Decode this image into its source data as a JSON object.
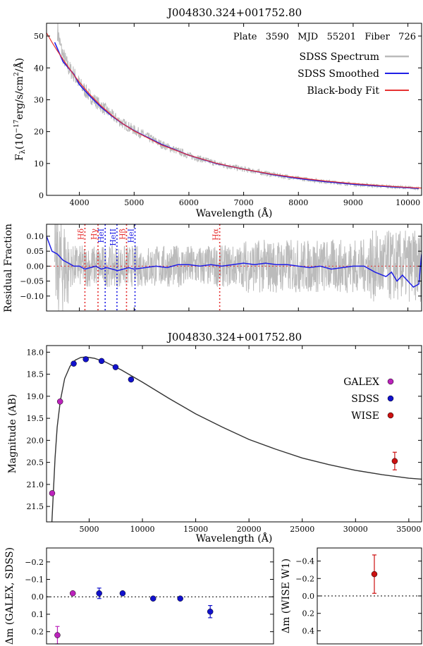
{
  "chart_data": [
    {
      "panel": "spectrum",
      "type": "line",
      "title": "J004830.324+001752.80",
      "annotation": "Plate   3590   MJD   55201   Fiber   726",
      "xlabel": "Wavelength (Å)",
      "ylabel": "F",
      "ylabel_sub": "λ",
      "ylabel_unit": "(10",
      "ylabel_exp": "−17",
      "ylabel_rest": "erg/s/cm",
      "ylabel_exp2": "2",
      "ylabel_end": "/Å)",
      "xlim": [
        3400,
        10250
      ],
      "ylim": [
        0,
        54
      ],
      "xticks": [
        4000,
        5000,
        6000,
        7000,
        8000,
        9000,
        10000
      ],
      "yticks": [
        0,
        10,
        20,
        30,
        40,
        50
      ],
      "legend_placement": "top-right",
      "series": [
        {
          "name": "SDSS Spectrum",
          "color": "#bbbbbb",
          "x": [
            3600,
            3650,
            3700,
            3800,
            3900,
            4000,
            4200,
            4400,
            4600,
            4800,
            5000,
            5500,
            6000,
            6500,
            7000,
            7500,
            8000,
            8500,
            9000,
            9500,
            10000,
            10200
          ],
          "y": [
            52,
            47,
            44,
            40,
            38,
            35,
            31,
            28,
            25,
            22.5,
            20.5,
            16,
            12.5,
            10,
            8.2,
            6.6,
            5.3,
            4.3,
            3.5,
            2.9,
            2.4,
            2.2
          ]
        },
        {
          "name": "SDSS Smoothed",
          "color": "#1f1fe6",
          "x": [
            3550,
            3600,
            3650,
            3700,
            3800,
            3900,
            4000,
            4200,
            4400,
            4600,
            4800,
            5000,
            5500,
            6000,
            6500,
            7000,
            7500,
            8000,
            8500,
            9000,
            9500,
            10000,
            10200
          ],
          "y": [
            48,
            46,
            44,
            42,
            40,
            38,
            34.8,
            31,
            27.6,
            24.8,
            22.4,
            20.3,
            16,
            12.6,
            10,
            8.2,
            6.6,
            5.3,
            4.3,
            3.5,
            2.9,
            2.4,
            2.2
          ]
        },
        {
          "name": "Black-body Fit",
          "color": "#e63232",
          "x": [
            3400,
            3500,
            3600,
            3700,
            3800,
            3900,
            4000,
            4200,
            4400,
            4600,
            4800,
            5000,
            5500,
            6000,
            6500,
            7000,
            7500,
            8000,
            8500,
            9000,
            9500,
            10000,
            10250
          ],
          "y": [
            51,
            48,
            45.3,
            42.7,
            40.2,
            37.8,
            35.5,
            31.5,
            28,
            25,
            22.4,
            20.2,
            15.8,
            12.6,
            10.1,
            8.2,
            6.7,
            5.5,
            4.5,
            3.7,
            3.05,
            2.5,
            2.3
          ]
        }
      ],
      "legend": [
        "SDSS Spectrum",
        "SDSS Smoothed",
        "Black-body Fit"
      ]
    },
    {
      "panel": "residual",
      "type": "line",
      "ylabel": "Residual Fraction",
      "xlim": [
        3400,
        10250
      ],
      "ylim": [
        -0.15,
        0.14
      ],
      "yticks": [
        -0.1,
        -0.05,
        0.0,
        0.05,
        0.1
      ],
      "ytick_labels": [
        "−0.10",
        "−0.05",
        "0.00",
        "0.05",
        "0.10"
      ],
      "smoothed_color": "#1f1fe6",
      "noise_color": "#bbbbbb",
      "zero_line_color": "#e63232",
      "smoothed": {
        "x": [
          3400,
          3500,
          3600,
          3700,
          3800,
          3900,
          4000,
          4100,
          4200,
          4300,
          4400,
          4500,
          4600,
          4700,
          4800,
          4900,
          5000,
          5200,
          5400,
          5600,
          5800,
          6000,
          6200,
          6400,
          6600,
          6800,
          7000,
          7200,
          7400,
          7600,
          7800,
          8000,
          8200,
          8400,
          8600,
          8800,
          9000,
          9200,
          9400,
          9600,
          9700,
          9800,
          9900,
          10000,
          10100,
          10200,
          10250
        ],
        "y": [
          0.1,
          0.05,
          0.04,
          0.02,
          0.01,
          0.0,
          0.0,
          -0.01,
          -0.005,
          0.0,
          -0.01,
          -0.005,
          -0.01,
          -0.015,
          -0.01,
          -0.005,
          -0.01,
          -0.005,
          0.0,
          -0.005,
          0.005,
          0.005,
          0.0,
          0.005,
          0.0,
          0.005,
          0.01,
          0.005,
          0.01,
          0.005,
          0.005,
          0.0,
          -0.005,
          0.0,
          -0.01,
          -0.005,
          0.0,
          0.0,
          -0.02,
          -0.035,
          -0.02,
          -0.05,
          -0.03,
          -0.05,
          -0.07,
          -0.06,
          0.04
        ]
      },
      "lines": [
        {
          "label": "Hδ",
          "x": 4101,
          "color": "#e63232"
        },
        {
          "label": "Hγ",
          "x": 4340,
          "color": "#e63232"
        },
        {
          "label": "HeI",
          "x": 4471,
          "color": "#1f1fe6"
        },
        {
          "label": "HeII",
          "x": 4686,
          "color": "#1f1fe6"
        },
        {
          "label": "Hβ",
          "x": 4861,
          "color": "#e63232"
        },
        {
          "label": "HeI",
          "x": 5016,
          "color": "#1f1fe6"
        },
        {
          "label": "Hα",
          "x": 6563,
          "color": "#e63232"
        }
      ]
    },
    {
      "panel": "photometry",
      "type": "scatter",
      "title": "J004830.324+001752.80",
      "xlabel": "Wavelength (Å)",
      "ylabel": "Magnitude (AB)",
      "xlim": [
        1000,
        36200
      ],
      "ylim": [
        21.85,
        17.85
      ],
      "xticks": [
        5000,
        10000,
        15000,
        20000,
        25000,
        30000,
        35000
      ],
      "yticks": [
        18.0,
        18.5,
        19.0,
        19.5,
        20.0,
        20.5,
        21.0,
        21.5
      ],
      "ytick_labels": [
        "18.0",
        "18.5",
        "19.0",
        "19.5",
        "20.0",
        "20.5",
        "21.0",
        "21.5"
      ],
      "legend_placement": "right",
      "curve": {
        "x": [
          1500,
          1800,
          2000,
          2300,
          2700,
          3200,
          3700,
          4200,
          4700,
          5500,
          6500,
          8000,
          10000,
          12500,
          15000,
          17500,
          20000,
          22500,
          25000,
          27500,
          30000,
          32500,
          35000,
          36200
        ],
        "y": [
          21.85,
          20.4,
          19.7,
          19.1,
          18.6,
          18.32,
          18.18,
          18.12,
          18.11,
          18.14,
          18.22,
          18.4,
          18.68,
          19.05,
          19.4,
          19.7,
          19.98,
          20.2,
          20.4,
          20.55,
          20.68,
          20.78,
          20.86,
          20.88
        ]
      },
      "series": [
        {
          "name": "GALEX",
          "color": "#bb22bb",
          "x": [
            1528,
            2271
          ],
          "y": [
            21.2,
            19.12
          ]
        },
        {
          "name": "SDSS",
          "color": "#1111cc",
          "x": [
            3551,
            4686,
            6166,
            7480,
            8932
          ],
          "y": [
            18.26,
            18.16,
            18.2,
            18.34,
            18.62
          ]
        },
        {
          "name": "WISE",
          "color": "#cc1111",
          "x": [
            33680
          ],
          "y": [
            20.47
          ],
          "err": [
            0.2
          ]
        }
      ],
      "legend": [
        "GALEX",
        "SDSS",
        "WISE"
      ]
    },
    {
      "panel": "dm_galex_sdss",
      "type": "scatter",
      "ylabel": "Δm (GALEX, SDSS)",
      "xlim": [
        1000,
        12000
      ],
      "ylim": [
        0.27,
        -0.28
      ],
      "yticks": [
        -0.2,
        -0.1,
        0.0,
        0.1,
        0.2
      ],
      "ytick_labels": [
        "−0.2",
        "−0.1",
        "0.0",
        "0.1",
        "0.2"
      ],
      "series": [
        {
          "name": "GALEX",
          "color": "#bb22bb",
          "x": [
            1528,
            2271
          ],
          "y": [
            0.22,
            -0.02
          ],
          "err": [
            0.05,
            0.0
          ]
        },
        {
          "name": "SDSS",
          "color": "#1111cc",
          "x": [
            3551,
            4686,
            6166,
            7480,
            8932
          ],
          "y": [
            -0.02,
            -0.02,
            0.01,
            0.01,
            0.085
          ],
          "err": [
            0.03,
            0.0,
            0.0,
            0.0,
            0.035
          ]
        }
      ]
    },
    {
      "panel": "dm_wise",
      "type": "scatter",
      "ylabel": "Δm (WISE W1)",
      "xlim": [
        20000,
        45000
      ],
      "ylim": [
        0.55,
        -0.55
      ],
      "yticks": [
        -0.4,
        -0.2,
        0.0,
        0.2,
        0.4
      ],
      "ytick_labels": [
        "−0.4",
        "−0.2",
        "0.0",
        "0.2",
        "0.4"
      ],
      "series": [
        {
          "name": "WISE",
          "color": "#cc1111",
          "x": [
            33680
          ],
          "y": [
            -0.25
          ],
          "err": [
            0.22
          ]
        }
      ]
    }
  ]
}
